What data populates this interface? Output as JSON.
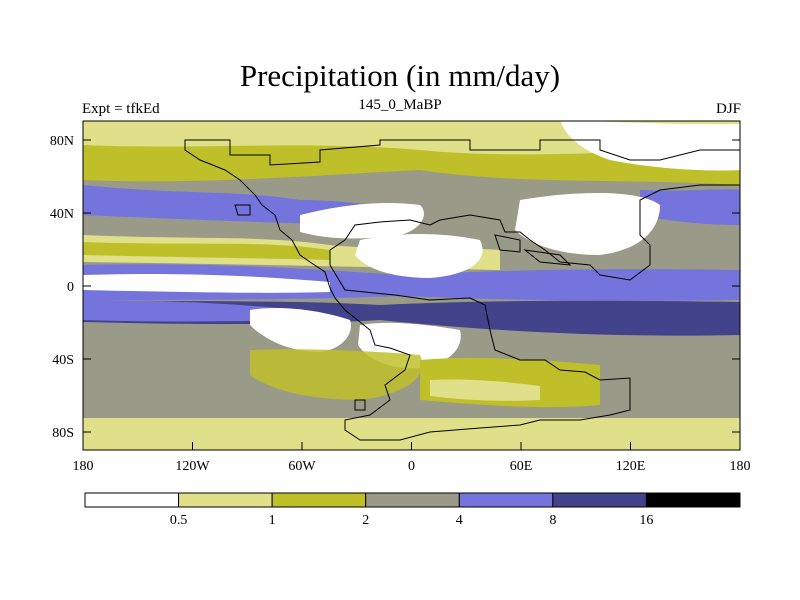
{
  "title": "Precipitation (in mm/day)",
  "expt_label": "Expt = tfkEd",
  "run_label": "145_0_MaBP",
  "season_label": "DJF",
  "lat_ticks": [
    "80N",
    "40N",
    "0",
    "40S",
    "80S"
  ],
  "lon_ticks": [
    "180",
    "120W",
    "60W",
    "0",
    "60E",
    "120E",
    "180"
  ],
  "legend": {
    "colors": [
      "#ffffff",
      "#e0e08a",
      "#bfbf2a",
      "#9a9a88",
      "#7474dc",
      "#43438c",
      "#000000"
    ],
    "labels": [
      "0.5",
      "1",
      "2",
      "4",
      "8",
      "16"
    ]
  },
  "colors": {
    "dry": "#ffffff",
    "c05": "#e0e08a",
    "c1": "#bfbf2a",
    "c2": "#9a9a88",
    "c4": "#7474dc",
    "c8": "#43438c"
  }
}
